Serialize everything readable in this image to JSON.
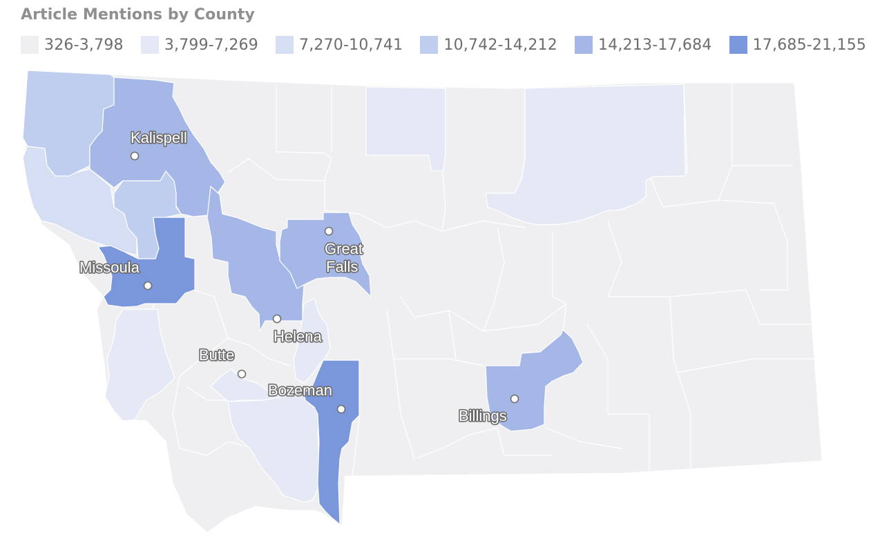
{
  "title": "Article Mentions by County",
  "legend": [
    {
      "label": "326-3,798",
      "color": "#efeff1"
    },
    {
      "label": "3,799-7,269",
      "color": "#e5e9f6"
    },
    {
      "label": "7,270-10,741",
      "color": "#d6def3"
    },
    {
      "label": "10,742-14,212",
      "color": "#bfcdee"
    },
    {
      "label": "14,213-17,684",
      "color": "#a4b7e6"
    },
    {
      "label": "17,685-21,155",
      "color": "#7a97dc"
    }
  ],
  "cities": [
    {
      "name": "Kalispell",
      "lines": [
        "Kalispell"
      ]
    },
    {
      "name": "Missoula",
      "lines": [
        "Missoula"
      ]
    },
    {
      "name": "Great Falls",
      "lines": [
        "Great",
        "Falls"
      ]
    },
    {
      "name": "Helena",
      "lines": [
        "Helena"
      ]
    },
    {
      "name": "Butte",
      "lines": [
        "Butte"
      ]
    },
    {
      "name": "Bozeman",
      "lines": [
        "Bozeman"
      ]
    },
    {
      "name": "Billings",
      "lines": [
        "Billings"
      ]
    }
  ]
}
